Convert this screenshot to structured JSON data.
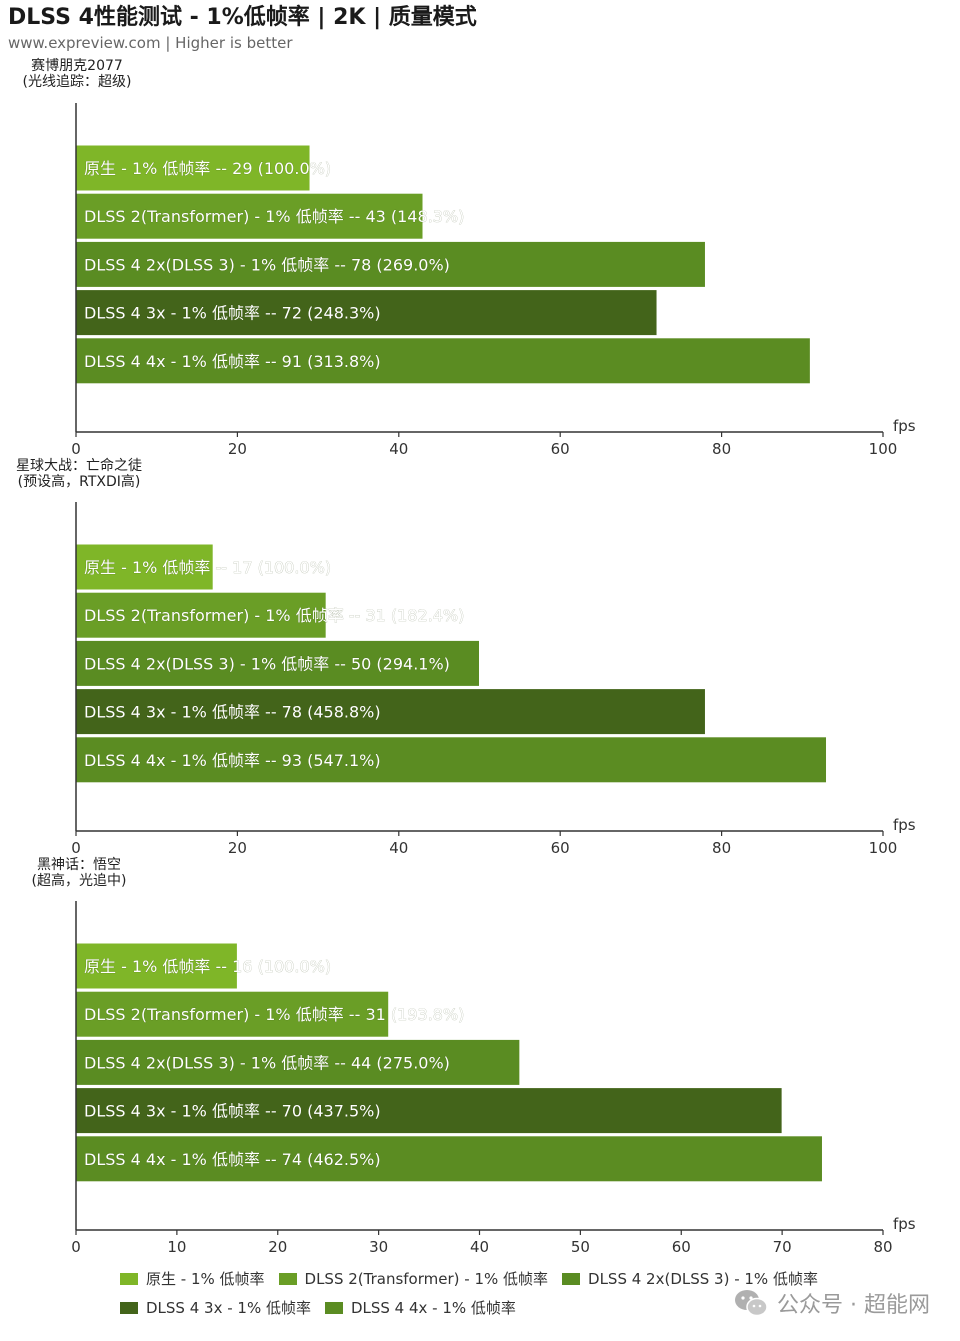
{
  "header": {
    "title": "DLSS 4性能测试 - 1%低帧率 | 2K | 质量模式",
    "subtitle": "www.expreview.com | Higher is better"
  },
  "colors": {
    "native": "#7fb628",
    "dlss2": "#6a9e26",
    "dlss4_2x": "#5a8c22",
    "dlss4_3x": "#43641a",
    "dlss4_4x": "#5b8c22",
    "axis": "#333333"
  },
  "chart_data": [
    {
      "type": "bar",
      "orientation": "horizontal",
      "title_lines": [
        "赛博朋克2077",
        "(光线追踪：超级)"
      ],
      "xlabel": "fps",
      "xlim": [
        0,
        100
      ],
      "xticks": [
        0,
        20,
        40,
        60,
        80,
        100
      ],
      "series": [
        {
          "name": "原生 - 1% 低帧率",
          "value": 29,
          "label": "原生 -  1% 低帧率  --  29 (100.0%)"
        },
        {
          "name": "DLSS 2(Transformer) - 1% 低帧率",
          "value": 43,
          "label": "DLSS 2(Transformer) - 1% 低帧率  --  43 (148.3%)"
        },
        {
          "name": "DLSS 4 2x(DLSS 3) - 1% 低帧率",
          "value": 78,
          "label": "DLSS 4 2x(DLSS 3)  - 1% 低帧率  --  78 (269.0%)"
        },
        {
          "name": "DLSS 4 3x - 1% 低帧率",
          "value": 72,
          "label": "DLSS 4 3x  - 1% 低帧率  --  72 (248.3%)"
        },
        {
          "name": "DLSS 4 4x - 1% 低帧率",
          "value": 91,
          "label": "DLSS 4 4x  - 1% 低帧率  --  91 (313.8%)"
        }
      ]
    },
    {
      "type": "bar",
      "orientation": "horizontal",
      "title_lines": [
        "星球大战：亡命之徒",
        "(预设高，RTXDI高)"
      ],
      "xlabel": "fps",
      "xlim": [
        0,
        100
      ],
      "xticks": [
        0,
        20,
        40,
        60,
        80,
        100
      ],
      "series": [
        {
          "name": "原生 - 1% 低帧率",
          "value": 17,
          "label": "原生 -  1% 低帧率  --  17 (100.0%)"
        },
        {
          "name": "DLSS 2(Transformer) - 1% 低帧率",
          "value": 31,
          "label": "DLSS 2(Transformer) - 1% 低帧率  --  31 (182.4%)"
        },
        {
          "name": "DLSS 4 2x(DLSS 3) - 1% 低帧率",
          "value": 50,
          "label": "DLSS 4 2x(DLSS 3)  - 1% 低帧率  --  50 (294.1%)"
        },
        {
          "name": "DLSS 4 3x - 1% 低帧率",
          "value": 78,
          "label": "DLSS 4 3x  - 1% 低帧率  --  78 (458.8%)"
        },
        {
          "name": "DLSS 4 4x - 1% 低帧率",
          "value": 93,
          "label": "DLSS 4 4x  - 1% 低帧率  --  93 (547.1%)"
        }
      ]
    },
    {
      "type": "bar",
      "orientation": "horizontal",
      "title_lines": [
        "黑神话：悟空",
        "(超高，光追中)"
      ],
      "xlabel": "fps",
      "xlim": [
        0,
        80
      ],
      "xticks": [
        0,
        10,
        20,
        30,
        40,
        50,
        60,
        70,
        80
      ],
      "series": [
        {
          "name": "原生 - 1% 低帧率",
          "value": 16,
          "label": "原生 -  1% 低帧率  --  16 (100.0%)"
        },
        {
          "name": "DLSS 2(Transformer) - 1% 低帧率",
          "value": 31,
          "label": "DLSS 2(Transformer) - 1% 低帧率  --  31 (193.8%)"
        },
        {
          "name": "DLSS 4 2x(DLSS 3) - 1% 低帧率",
          "value": 44,
          "label": "DLSS 4 2x(DLSS 3)  - 1% 低帧率  --  44 (275.0%)"
        },
        {
          "name": "DLSS 4 3x - 1% 低帧率",
          "value": 70,
          "label": "DLSS 4 3x  - 1% 低帧率  --  70 (437.5%)"
        },
        {
          "name": "DLSS 4 4x - 1% 低帧率",
          "value": 74,
          "label": "DLSS 4 4x  - 1% 低帧率  --  74 (462.5%)"
        }
      ]
    }
  ],
  "legend": {
    "row1": [
      {
        "label": "原生 -  1% 低帧率",
        "color_key": "native"
      },
      {
        "label": "DLSS 2(Transformer) - 1% 低帧率",
        "color_key": "dlss2"
      },
      {
        "label": "DLSS 4 2x(DLSS 3)  - 1% 低帧率",
        "color_key": "dlss4_2x"
      }
    ],
    "row2": [
      {
        "label": "DLSS 4 3x  - 1% 低帧率",
        "color_key": "dlss4_3x"
      },
      {
        "label": "DLSS 4 4x  - 1% 低帧率",
        "color_key": "dlss4_4x"
      }
    ]
  },
  "watermark": {
    "text": "公众号 · 超能网",
    "icon": "wechat-icon"
  }
}
